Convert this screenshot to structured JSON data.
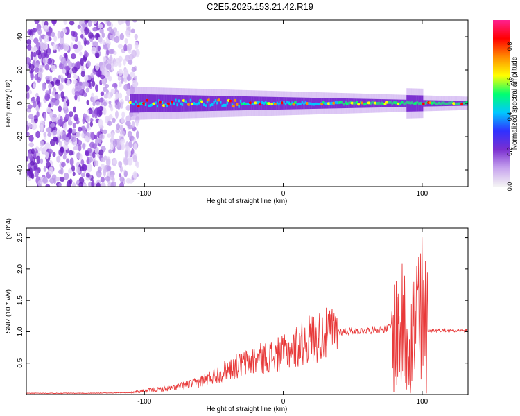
{
  "title": "C2E5.2025.153.21.42.R19",
  "colors": {
    "trace": "#e83a3a",
    "spectrogram_base": "#7b2fd0",
    "frame": "#000000"
  },
  "chart_data": [
    {
      "type": "heatmap",
      "xlabel": "Height of straight line (km)",
      "ylabel": "Frequency (Hz)",
      "xlim": [
        -185,
        133
      ],
      "ylim": [
        -50,
        50
      ],
      "x_ticks": [
        -100,
        0,
        100
      ],
      "y_ticks": [
        -40,
        -20,
        0,
        20,
        40
      ],
      "x_tick_labels": [
        "-100",
        "0",
        "100"
      ],
      "y_tick_labels": [
        "-40",
        "-20",
        "0",
        "20",
        "40"
      ],
      "colorbar": {
        "label": "Normalized spectral amplitude",
        "range": [
          0,
          0.95
        ],
        "ticks": [
          0,
          0.2,
          0.4,
          0.6,
          0.8
        ],
        "tick_labels": [
          "0.0",
          "0.2",
          "0.4",
          "0.6",
          "0.8"
        ],
        "colors": [
          "#f4f4f4",
          "#c7a4ee",
          "#7b2fd0",
          "#3030ff",
          "#00c8ff",
          "#00ff70",
          "#ffff00",
          "#ff8c00",
          "#ff0000",
          "#ff2090"
        ]
      },
      "features": {
        "noise_region_x": [
          -185,
          -110
        ],
        "band_start_x": -110,
        "band_center_hz": 0,
        "band_halfwidth_hz_near_start": 8,
        "band_halfwidth_hz_far": 2,
        "burst_near_x": 95
      }
    },
    {
      "type": "line",
      "xlabel": "Height of straight line (km)",
      "ylabel": "SNR (10 * v/v)",
      "scale_label": "(x10^4)",
      "xlim": [
        -185,
        133
      ],
      "ylim": [
        0,
        2.65
      ],
      "x_ticks": [
        -100,
        0,
        100
      ],
      "y_ticks": [
        0.5,
        1.0,
        1.5,
        2.0,
        2.5
      ],
      "x_tick_labels": [
        "-100",
        "0",
        "100"
      ],
      "y_tick_labels": [
        "0.5",
        "1.0",
        "1.5",
        "2.0",
        "2.5"
      ],
      "series": [
        {
          "values_description_points": [
            [
              -185,
              0.02
            ],
            [
              -140,
              0.02
            ],
            [
              -110,
              0.03
            ],
            [
              -100,
              0.06
            ],
            [
              -80,
              0.1
            ],
            [
              -60,
              0.2
            ],
            [
              -40,
              0.4
            ],
            [
              -20,
              0.55
            ],
            [
              0,
              0.65
            ],
            [
              20,
              0.9
            ],
            [
              40,
              1.0
            ],
            [
              60,
              1.02
            ],
            [
              75,
              1.05
            ],
            [
              85,
              1.2
            ],
            [
              95,
              1.3
            ],
            [
              98,
              2.6
            ],
            [
              100,
              1.8
            ],
            [
              105,
              1.05
            ],
            [
              115,
              1.03
            ],
            [
              133,
              1.02
            ]
          ]
        }
      ]
    }
  ]
}
